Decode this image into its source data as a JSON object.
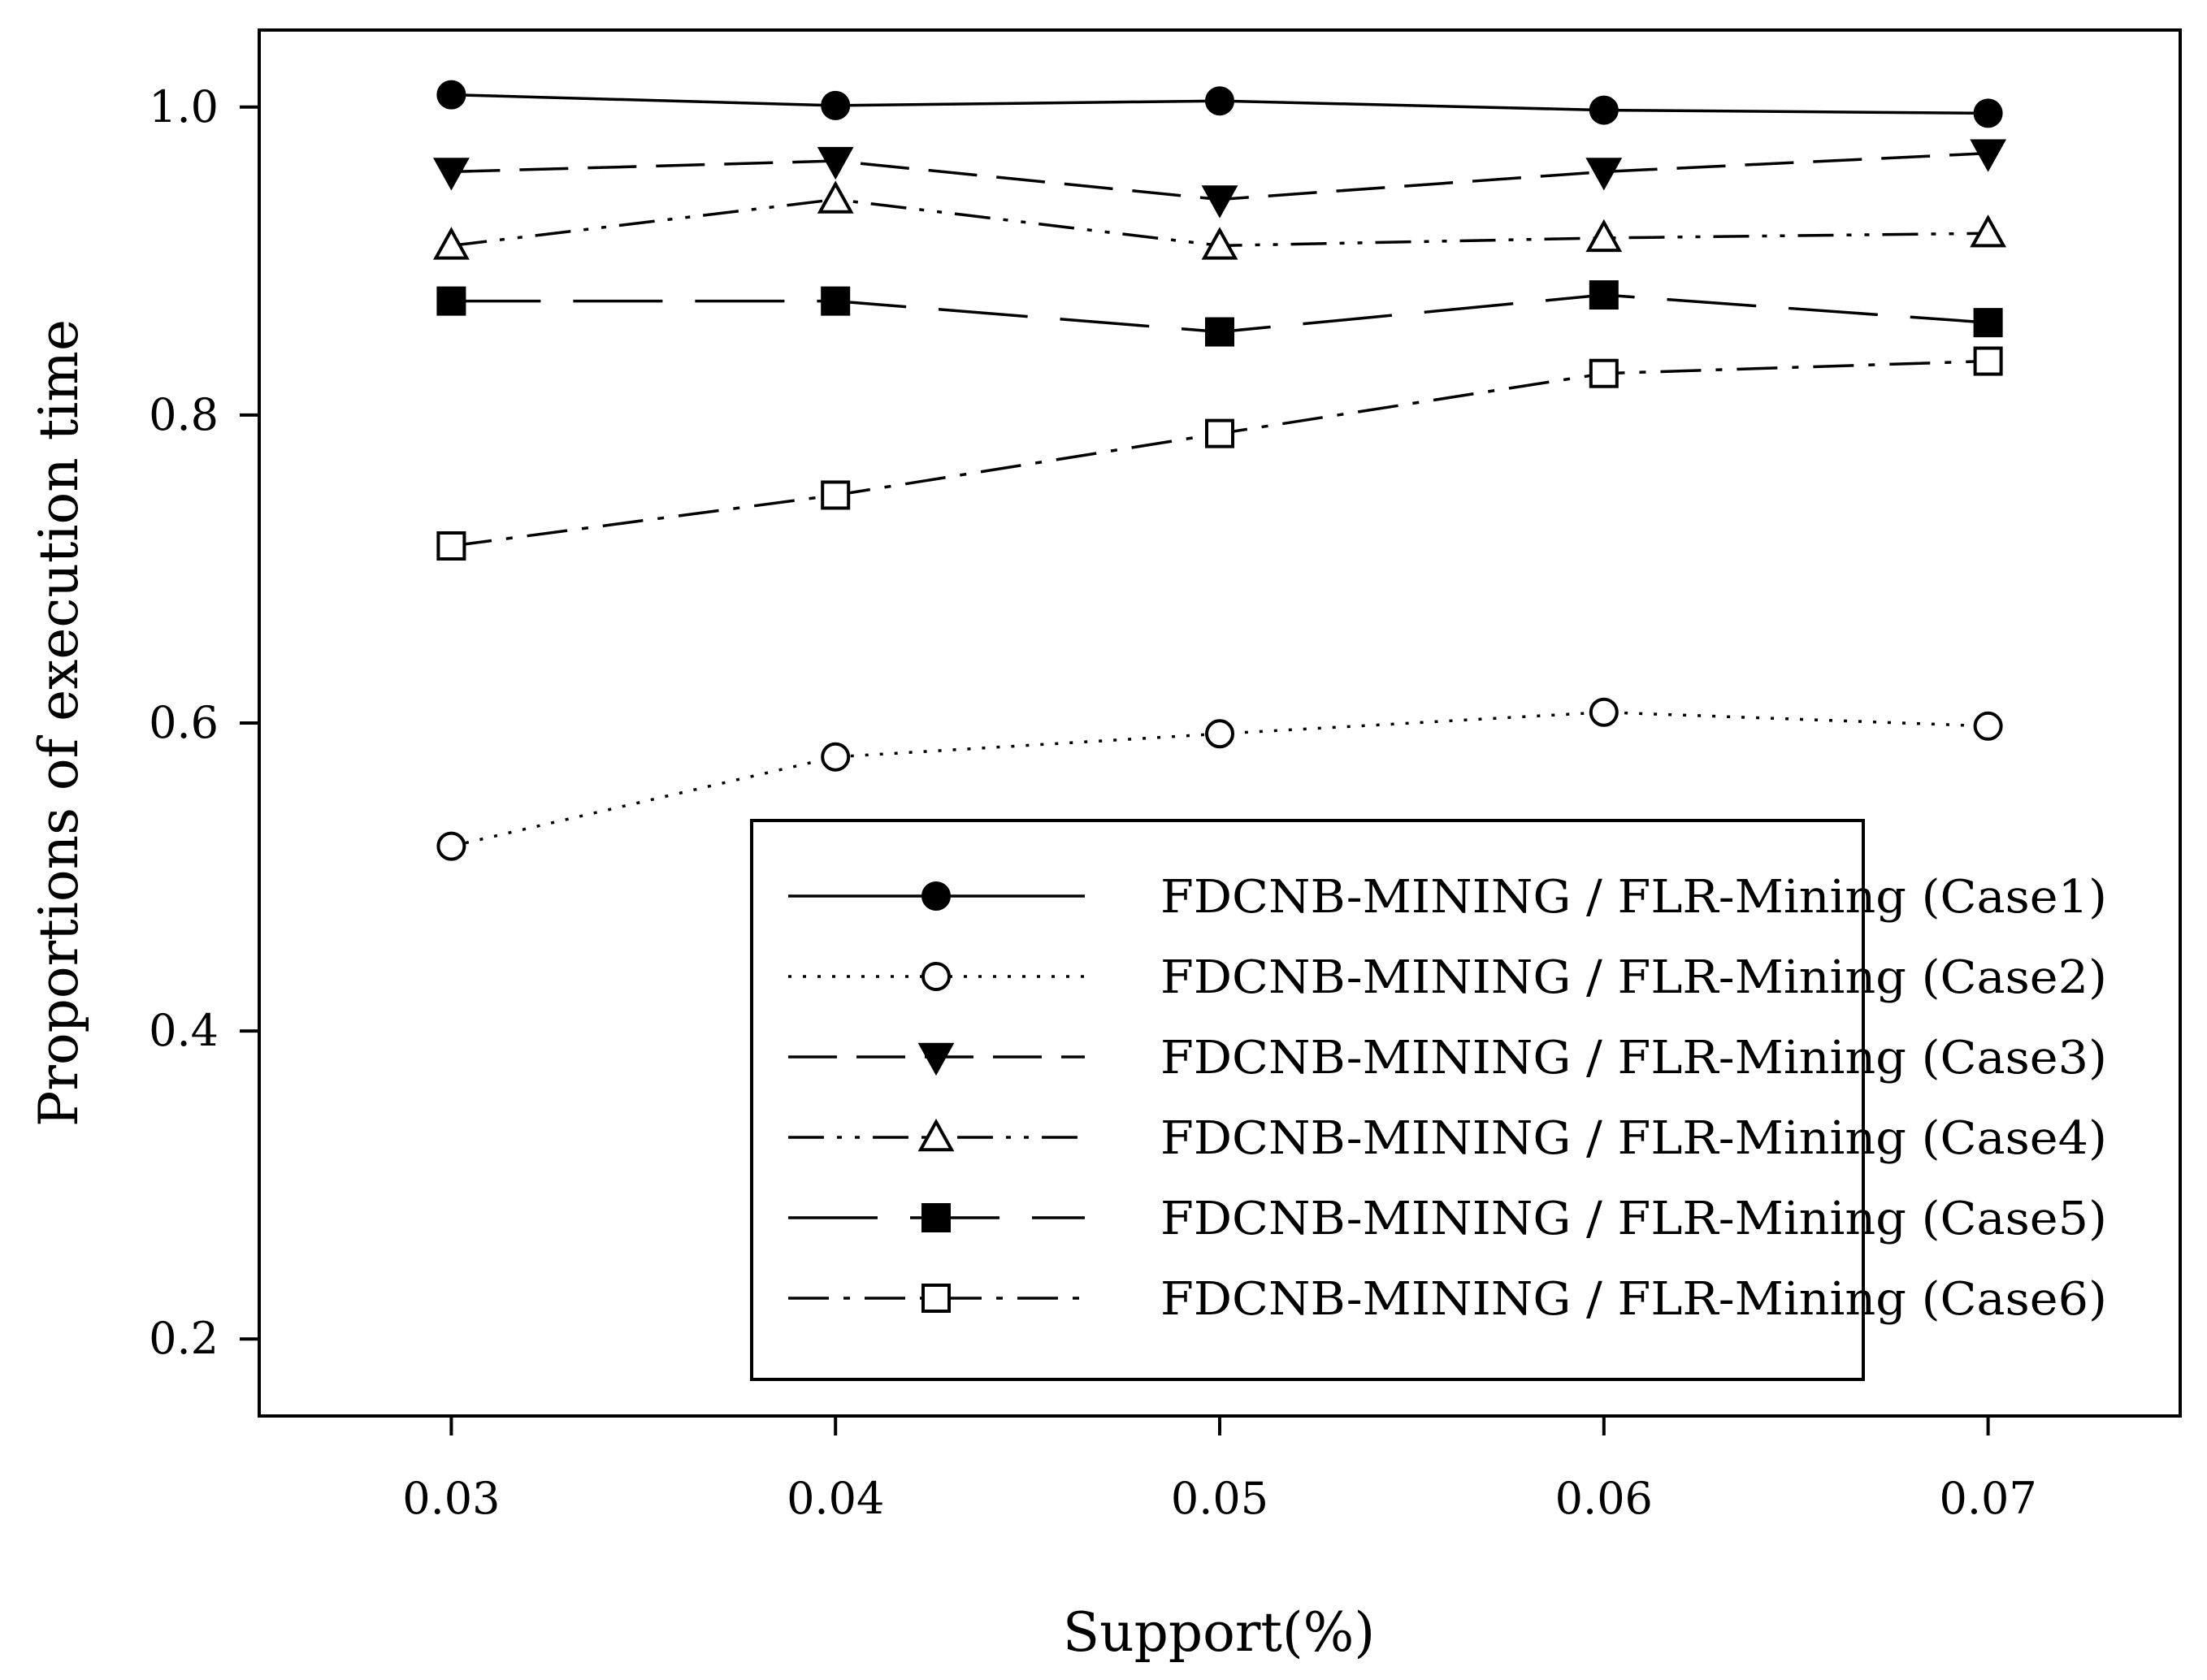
{
  "chart_data": {
    "type": "line",
    "title": "",
    "xlabel": "Support(%)",
    "ylabel": "Proportions of execution time",
    "x": [
      0.03,
      0.04,
      0.05,
      0.06,
      0.07
    ],
    "x_tick_labels": [
      "0.03",
      "0.04",
      "0.05",
      "0.06",
      "0.07"
    ],
    "xlim": [
      0.025,
      0.075
    ],
    "ylim": [
      0.15,
      1.05
    ],
    "y_ticks": [
      0.2,
      0.4,
      0.6,
      0.8,
      1.0
    ],
    "y_tick_labels": [
      "0.2",
      "0.4",
      "0.6",
      "0.8",
      "1.0"
    ],
    "grid": false,
    "legend_position": "bottom-right",
    "series": [
      {
        "name": "FDCNB-MINING  / FLR-Mining (Case1)",
        "values": [
          1.008,
          1.001,
          1.004,
          0.998,
          0.996
        ],
        "marker": "circle",
        "filled": true,
        "dash": "solid"
      },
      {
        "name": "FDCNB-MINING  / FLR-Mining (Case2)",
        "values": [
          0.52,
          0.578,
          0.593,
          0.607,
          0.598
        ],
        "marker": "circle",
        "filled": false,
        "dash": "dotted"
      },
      {
        "name": "FDCNB-MINING  / FLR-Mining (Case3)",
        "values": [
          0.958,
          0.965,
          0.94,
          0.958,
          0.97
        ],
        "marker": "triangle-down",
        "filled": true,
        "dash": "dashed"
      },
      {
        "name": "FDCNB-MINING  / FLR-Mining (Case4)",
        "values": [
          0.91,
          0.94,
          0.91,
          0.915,
          0.918
        ],
        "marker": "triangle-up",
        "filled": false,
        "dash": "dash-dot-dot"
      },
      {
        "name": "FDCNB-MINING  / FLR-Mining (Case5)",
        "values": [
          0.874,
          0.874,
          0.854,
          0.878,
          0.86
        ],
        "marker": "square",
        "filled": true,
        "dash": "long-dash"
      },
      {
        "name": "FDCNB-MINING  / FLR-Mining (Case6)",
        "values": [
          0.715,
          0.748,
          0.788,
          0.827,
          0.835
        ],
        "marker": "square",
        "filled": false,
        "dash": "dash-dot"
      }
    ]
  }
}
